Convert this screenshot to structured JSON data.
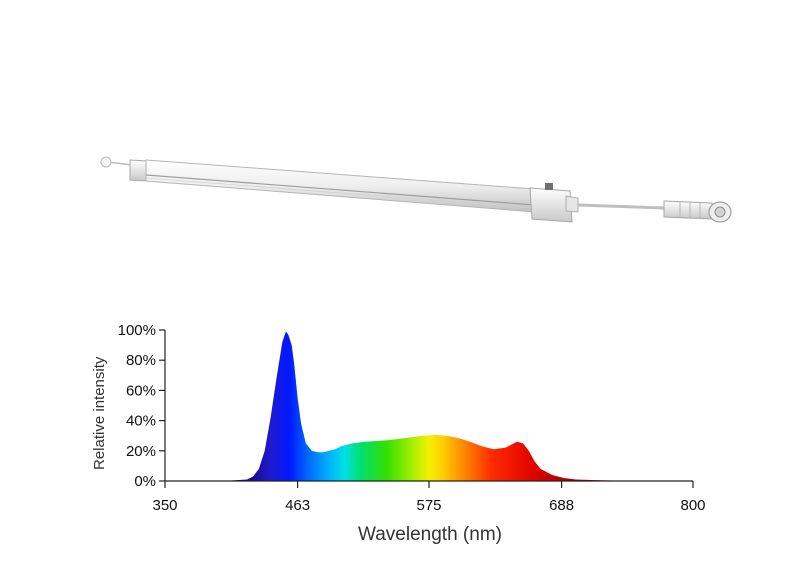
{
  "product": {
    "name": "led-grow-light-bar",
    "colors": {
      "body": "#f2f2f2",
      "edge": "#c9c9c9",
      "shadow": "#9a9a9a"
    }
  },
  "chart_data": {
    "type": "area",
    "xlabel": "Wavelength (nm)",
    "ylabel": "Relative intensity",
    "xlim": [
      350,
      800
    ],
    "ylim": [
      0,
      100
    ],
    "x_ticks": [
      350,
      463,
      575,
      688,
      800
    ],
    "x_tick_labels": [
      "350",
      "463",
      "575",
      "688",
      "800"
    ],
    "y_ticks": [
      0,
      20,
      40,
      60,
      80,
      100
    ],
    "y_tick_labels": [
      "0%",
      "20%",
      "40%",
      "60%",
      "80%",
      "100%"
    ],
    "fill": "visible-spectrum-gradient",
    "grid": false,
    "series": [
      {
        "x": [
          350,
          380,
          400,
          410,
          420,
          425,
          430,
          435,
          440,
          445,
          450,
          453,
          455,
          458,
          460,
          463,
          466,
          470,
          475,
          480,
          485,
          490,
          495,
          500,
          510,
          520,
          530,
          540,
          550,
          560,
          570,
          580,
          590,
          600,
          610,
          620,
          630,
          640,
          645,
          650,
          655,
          660,
          665,
          670,
          680,
          690,
          700,
          720,
          740,
          760,
          800
        ],
        "y": [
          0,
          0,
          0,
          0.5,
          1,
          3,
          8,
          20,
          42,
          68,
          92,
          99,
          97,
          90,
          78,
          55,
          38,
          25,
          20,
          19,
          19,
          20,
          21,
          23,
          25,
          26,
          26.5,
          27,
          28,
          29,
          30,
          30.5,
          30,
          28.5,
          26,
          23,
          21,
          22,
          24,
          26,
          25,
          20,
          13,
          8,
          4,
          2,
          1,
          0.5,
          0.2,
          0.1,
          0
        ]
      }
    ]
  }
}
